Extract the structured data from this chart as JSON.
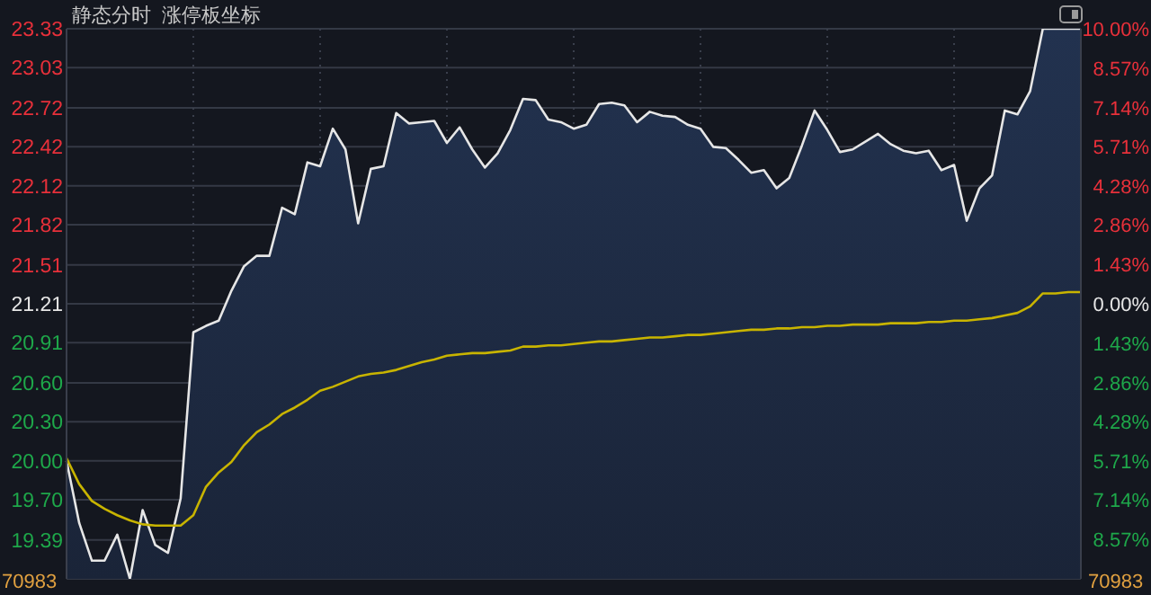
{
  "chart_data": {
    "type": "line",
    "title": "静态分时  涨停板坐标",
    "categories": [
      null,
      null,
      null,
      null,
      null,
      null,
      null,
      null,
      null,
      null,
      null,
      null,
      null,
      null,
      null,
      null,
      null,
      null,
      null,
      null,
      null,
      null,
      null,
      null,
      null,
      null,
      null,
      null,
      null,
      null,
      null,
      null,
      null,
      null,
      null,
      null,
      null,
      null,
      null,
      null,
      null,
      null,
      null,
      null,
      null,
      null,
      null,
      null,
      null,
      null,
      null,
      null,
      null,
      null,
      null,
      null,
      null,
      null,
      null,
      null,
      null,
      null,
      null,
      null,
      null,
      null,
      null,
      null,
      null,
      null,
      null,
      null,
      null,
      null,
      null,
      null,
      null,
      null,
      null,
      null,
      null
    ],
    "ylim": [
      19.09,
      23.33
    ],
    "yticks": [
      23.33,
      23.03,
      22.72,
      22.42,
      22.12,
      21.82,
      21.51,
      21.21,
      20.91,
      {
        "value": 20.6,
        "label": "20.60"
      },
      {
        "value": 20.3,
        "label": "20.30"
      },
      {
        "value": 20.0,
        "label": "20.00"
      },
      {
        "value": 19.7,
        "label": "19.70"
      },
      19.39
    ],
    "y2lim": [
      -10,
      10
    ],
    "y2ticks": [
      {
        "value": 10,
        "label": "10.00%"
      },
      {
        "value": 8.57,
        "label": "8.57%"
      },
      {
        "value": 7.14,
        "label": "7.14%"
      },
      {
        "value": 5.71,
        "label": "5.71%"
      },
      {
        "value": 4.28,
        "label": "4.28%"
      },
      {
        "value": 2.86,
        "label": "2.86%"
      },
      {
        "value": 1.43,
        "label": "1.43%"
      },
      {
        "value": 0,
        "label": "0.00%"
      },
      {
        "value": -1.43,
        "label": "1.43%"
      },
      {
        "value": -2.86,
        "label": "2.86%"
      },
      {
        "value": -4.28,
        "label": "4.28%"
      },
      {
        "value": -5.71,
        "label": "5.71%"
      },
      {
        "value": -7.14,
        "label": "7.14%"
      },
      {
        "value": -8.57,
        "label": "8.57%"
      }
    ],
    "tick_labels": "y",
    "grid": true,
    "legend": false,
    "marker": "none",
    "line_style": "solid",
    "annotations": [
      "70983",
      "70983"
    ],
    "series": [
      {
        "type": "area",
        "color": "#e6e6e6",
        "values": [
          20.0,
          19.52,
          19.23,
          19.23,
          19.43,
          19.09,
          19.62,
          19.35,
          19.29,
          19.71,
          20.99,
          21.04,
          21.08,
          21.31,
          21.5,
          21.58,
          21.58,
          21.95,
          21.9,
          22.3,
          22.27,
          22.56,
          22.4,
          21.83,
          22.25,
          22.27,
          22.68,
          22.6,
          22.61,
          22.62,
          22.45,
          22.57,
          22.4,
          22.26,
          22.37,
          22.55,
          22.79,
          22.78,
          22.63,
          22.61,
          22.56,
          22.59,
          22.75,
          22.76,
          22.74,
          22.61,
          22.69,
          22.66,
          22.65,
          22.59,
          22.56,
          22.42,
          22.41,
          22.32,
          22.22,
          22.24,
          22.1,
          22.18,
          22.43,
          22.7,
          22.55,
          22.38,
          22.4,
          22.46,
          22.52,
          22.44,
          22.39,
          22.37,
          22.39,
          22.24,
          22.28,
          21.85,
          22.1,
          22.2,
          22.7,
          22.67,
          22.85,
          23.33,
          23.33,
          23.33,
          23.33
        ]
      },
      {
        "type": "line",
        "color": "#c8b400",
        "values": [
          20.02,
          19.82,
          19.69,
          19.63,
          19.58,
          19.54,
          19.51,
          19.5,
          19.5,
          19.5,
          19.58,
          19.8,
          19.91,
          19.99,
          20.12,
          20.22,
          20.28,
          20.36,
          20.41,
          20.47,
          20.54,
          20.57,
          20.61,
          20.65,
          20.67,
          20.68,
          20.7,
          20.73,
          20.76,
          20.78,
          20.81,
          20.82,
          20.83,
          20.83,
          20.84,
          20.85,
          20.88,
          20.88,
          20.89,
          20.89,
          20.9,
          20.91,
          20.92,
          20.92,
          20.93,
          20.94,
          20.95,
          20.95,
          20.96,
          20.97,
          20.97,
          20.98,
          20.99,
          21.0,
          21.01,
          21.01,
          21.02,
          21.02,
          21.03,
          21.03,
          21.04,
          21.04,
          21.05,
          21.05,
          21.05,
          21.06,
          21.06,
          21.06,
          21.07,
          21.07,
          21.08,
          21.08,
          21.09,
          21.1,
          21.12,
          21.14,
          21.19,
          21.29,
          21.29,
          21.3,
          21.3
        ]
      }
    ]
  }
}
